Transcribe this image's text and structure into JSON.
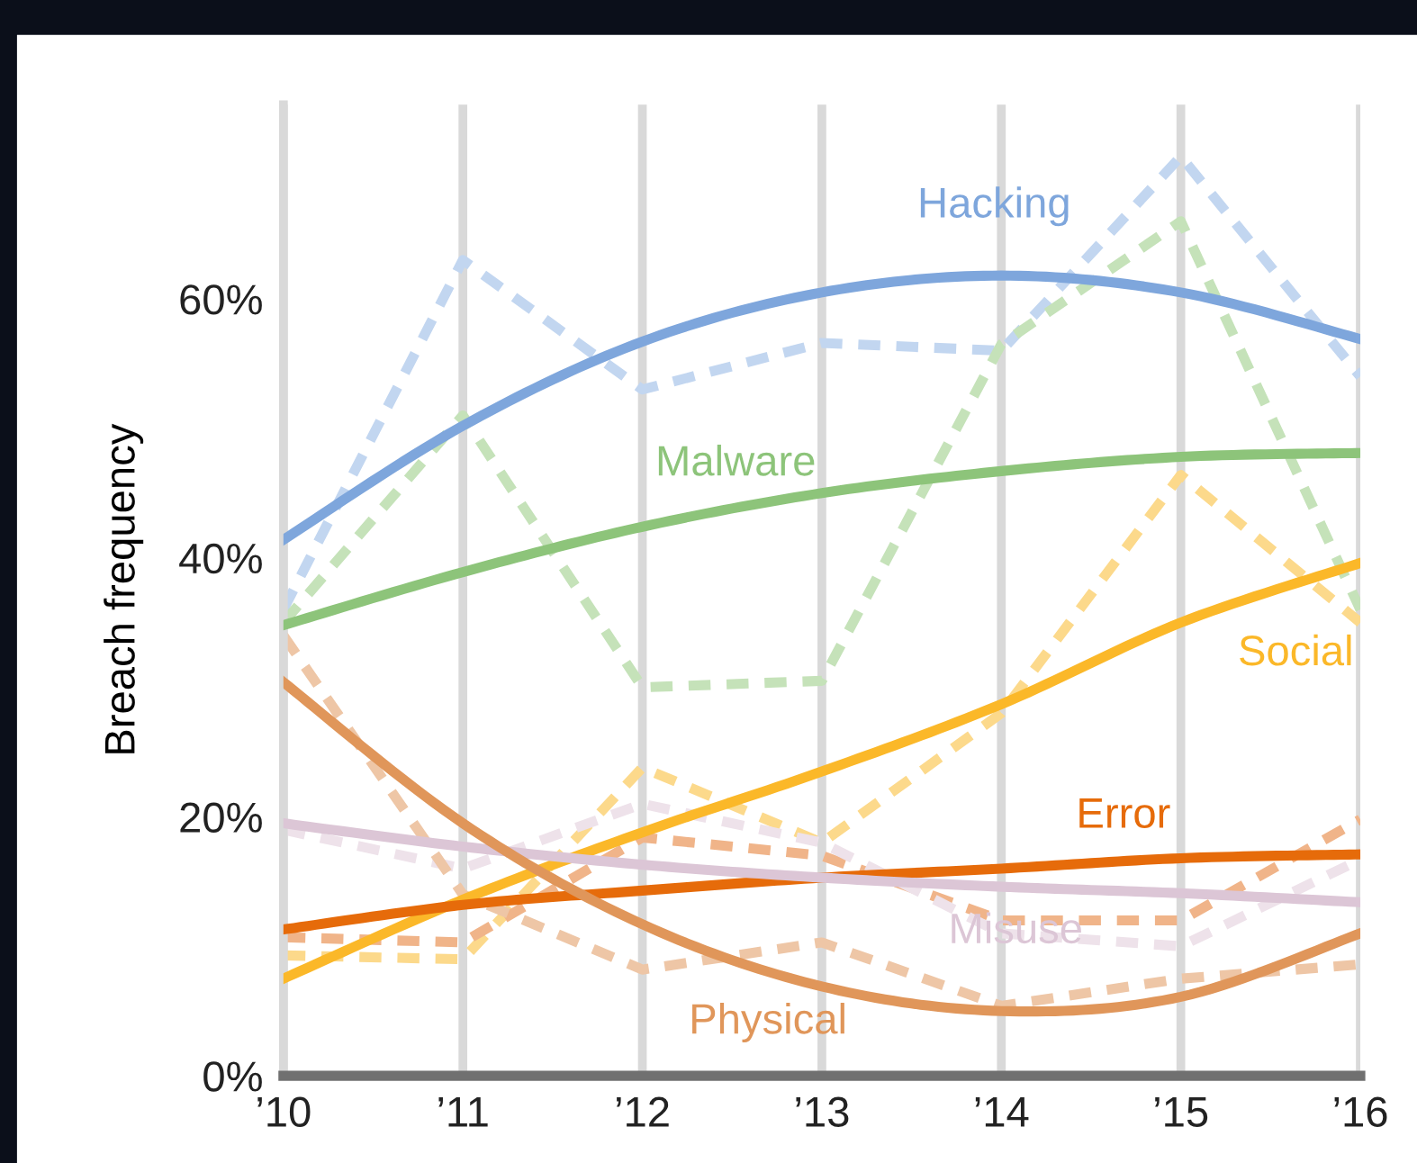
{
  "chart_data": {
    "type": "line",
    "ylabel": "Breach frequency",
    "x": [
      2010,
      2011,
      2012,
      2013,
      2014,
      2015,
      2016
    ],
    "xlim": [
      2010,
      2016
    ],
    "xticks": [
      {
        "value": 2010,
        "label": "’10"
      },
      {
        "value": 2011,
        "label": "’11"
      },
      {
        "value": 2012,
        "label": "’12"
      },
      {
        "value": 2013,
        "label": "’13"
      },
      {
        "value": 2014,
        "label": "’14"
      },
      {
        "value": 2015,
        "label": "’15"
      },
      {
        "value": 2016,
        "label": "’16"
      }
    ],
    "ylim": [
      0,
      75
    ],
    "yticks": [
      {
        "value": 0,
        "label": "0%"
      },
      {
        "value": 20,
        "label": "20%"
      },
      {
        "value": 40,
        "label": "40%"
      },
      {
        "value": 60,
        "label": "60%"
      }
    ],
    "grid": "x",
    "legend": false,
    "marker": "none",
    "series": [
      {
        "color": "#c2d6f0",
        "line_style": "dashed",
        "values": [
          36,
          63,
          53,
          56.6,
          56,
          71,
          54
        ]
      },
      {
        "color": "#c5e2b9",
        "line_style": "dashed",
        "values": [
          35,
          51,
          30,
          30.5,
          56.5,
          66,
          36
        ]
      },
      {
        "color": "#fcd98b",
        "line_style": "dashed",
        "values": [
          9.3,
          9,
          23.8,
          18,
          28,
          46.4,
          35
        ]
      },
      {
        "color": "#f0b489",
        "line_style": "dashed",
        "values": [
          10.7,
          10.3,
          18.4,
          17,
          12,
          12,
          19.8
        ]
      },
      {
        "color": "#eee2ea",
        "line_style": "dashed",
        "values": [
          19,
          16,
          21,
          18,
          11,
          10,
          16.7
        ]
      },
      {
        "color": "#eec6a6",
        "line_style": "dashed",
        "values": [
          34,
          14,
          8.2,
          10.3,
          5.4,
          7.5,
          8.6
        ]
      },
      {
        "name": "Hacking",
        "color": "#7ea6dc",
        "line_style": "solid",
        "values": [
          41.4,
          50.2,
          56.7,
          60.5,
          61.8,
          60.5,
          56.9
        ]
      },
      {
        "name": "Malware",
        "color": "#8dc47a",
        "line_style": "solid",
        "values": [
          34.8,
          38.9,
          42.4,
          45,
          46.7,
          47.8,
          48.1
        ]
      },
      {
        "name": "Social",
        "color": "#fbb829",
        "line_style": "solid",
        "values": [
          7.5,
          13.6,
          18.8,
          23.5,
          28.7,
          35,
          39.6
        ]
      },
      {
        "name": "Error",
        "color": "#e66b0a",
        "line_style": "solid",
        "values": [
          11.3,
          13.2,
          14.3,
          15.3,
          16,
          16.8,
          17.1
        ]
      },
      {
        "name": "Misuse",
        "color": "#dcc6d6",
        "line_style": "solid",
        "values": [
          19.5,
          17.7,
          16.3,
          15.3,
          14.6,
          14.1,
          13.4
        ]
      },
      {
        "name": "Physical",
        "color": "#e0965a",
        "line_style": "solid",
        "values": [
          30.4,
          19.5,
          11.7,
          6.9,
          5,
          6.1,
          11
        ]
      }
    ]
  }
}
